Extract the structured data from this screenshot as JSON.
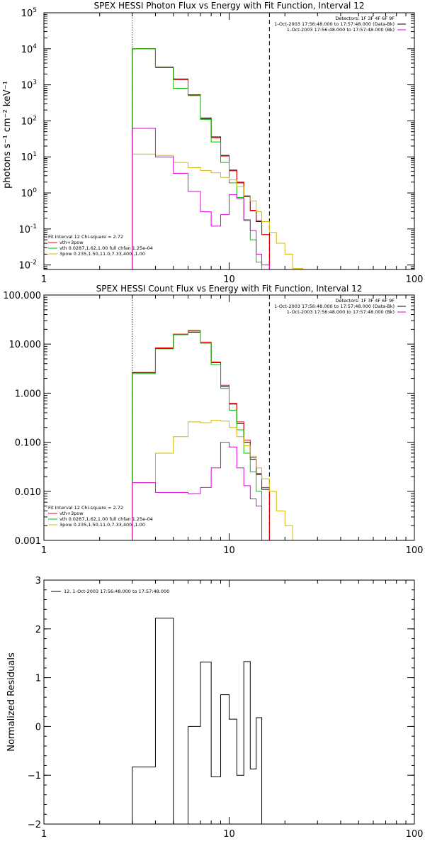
{
  "chart_data": [
    {
      "type": "line",
      "title": "SPEX HESSI Photon Flux vs Energy with Fit Function, Interval 12",
      "xlabel": "",
      "ylabel": "photons s⁻¹ cm⁻² keV⁻¹",
      "x_scale": "log",
      "y_scale": "log",
      "xlim": [
        1,
        100
      ],
      "ylim": [
        0.0075,
        100000
      ],
      "x_ticks": [
        {
          "v": 1,
          "label": "1"
        },
        {
          "v": 10,
          "label": "10"
        },
        {
          "v": 100,
          "label": "100"
        }
      ],
      "y_ticks": [
        {
          "v": 0.01,
          "b": "10",
          "e": "-2"
        },
        {
          "v": 0.1,
          "b": "10",
          "e": "-1"
        },
        {
          "v": 1,
          "b": "10",
          "e": "0"
        },
        {
          "v": 10,
          "b": "10",
          "e": "1"
        },
        {
          "v": 100,
          "b": "10",
          "e": "2"
        },
        {
          "v": 1000,
          "b": "10",
          "e": "3"
        },
        {
          "v": 10000,
          "b": "10",
          "e": "4"
        },
        {
          "v": 100000,
          "b": "10",
          "e": "5"
        }
      ],
      "vlines": [
        {
          "x": 3,
          "style": "dotted"
        },
        {
          "x": 16.5,
          "style": "dashed"
        }
      ],
      "info_lines": [
        "Detectors: 1F 3F 4F 6F 9F",
        "1-Oct-2003 17:56:48.000 to 17:57:48.000 (Data-Bk)",
        "1-Oct-2003 17:56:48.000 to 17:57:48.000 (Bk)"
      ],
      "info_colors": [
        "",
        "#000000",
        "#e000e0"
      ],
      "fit_text": [
        "Fit Interval 12    Chi-square = 2.72",
        "vth+3pow",
        "vth 0.0287,1.62,1.00  full chfan 1.25e-04",
        "3pow 0.235,1.50,11.0,7.33,400.,1.00"
      ],
      "fit_colors": [
        "#000000",
        "#ff0000",
        "#00c000",
        "#d4b800"
      ],
      "edges": [
        3,
        4,
        5,
        6,
        7,
        8,
        9,
        10,
        11,
        12,
        13,
        14,
        15,
        16.5,
        18,
        20,
        22,
        25
      ],
      "series": [
        {
          "color": "#000000",
          "values": [
            10000,
            3100,
            1450,
            530,
            120,
            36,
            11,
            4.3,
            1.9,
            0.8,
            0.32,
            0.16,
            0.07
          ]
        },
        {
          "color": "#ff0000",
          "values": [
            10000,
            3000,
            1400,
            520,
            115,
            34,
            10.5,
            4.1,
            2.0,
            0.78,
            0.33,
            0.17,
            0.07
          ]
        },
        {
          "color": "#00c000",
          "values": [
            10000,
            3000,
            800,
            500,
            110,
            26,
            7,
            1.9,
            0.75,
            0.17,
            0.05,
            0.012
          ]
        },
        {
          "color": "#d4b800",
          "values": [
            12,
            11,
            7,
            5,
            4.2,
            3.6,
            2.7,
            2.3,
            1.5,
            0.85,
            0.6,
            0.3,
            0.16,
            0.08,
            0.04,
            0.02,
            0.008
          ]
        },
        {
          "color": "#e000e0",
          "values": [
            62,
            10,
            3.5,
            1.1,
            0.3,
            0.12,
            0.25,
            0.9,
            0.7,
            0.18,
            0.09,
            0.02,
            0.01
          ]
        }
      ]
    },
    {
      "type": "line",
      "title": "SPEX HESSI Count Flux vs Energy with Fit Function, Interval 12",
      "xlabel": "",
      "ylabel": "",
      "x_scale": "log",
      "y_scale": "log",
      "xlim": [
        1,
        100
      ],
      "ylim": [
        0.001,
        100
      ],
      "x_ticks": [
        {
          "v": 1,
          "label": "1"
        },
        {
          "v": 10,
          "label": "10"
        },
        {
          "v": 100,
          "label": "100"
        }
      ],
      "y_ticks": [
        {
          "v": 0.001,
          "label": "0.001"
        },
        {
          "v": 0.01,
          "label": "0.010"
        },
        {
          "v": 0.1,
          "label": "0.100"
        },
        {
          "v": 1,
          "label": "1.000"
        },
        {
          "v": 10,
          "label": "10.000"
        },
        {
          "v": 100,
          "label": "100.000"
        }
      ],
      "vlines": [
        {
          "x": 3,
          "style": "dotted"
        },
        {
          "x": 16.5,
          "style": "dashed"
        }
      ],
      "info_lines": [
        "Detectors: 1F 3F 4F 6F 9F",
        "1-Oct-2003 17:56:48.000 to 17:57:48.000 (Data-Bk)",
        "1-Oct-2003 17:56:48.000 to 17:57:48.000 (Bk)"
      ],
      "info_colors": [
        "",
        "#000000",
        "#e000e0"
      ],
      "fit_text": [
        "Fit Interval 12    Chi-square = 2.72",
        "vth+3pow",
        "vth 0.0287,1.62,1.00  full chfan 1.25e-04",
        "3pow 0.235,1.50,11.0,7.33,400.,1.00"
      ],
      "fit_colors": [
        "#000000",
        "#ff0000",
        "#00c000",
        "#d4b800"
      ],
      "edges": [
        3,
        4,
        5,
        6,
        7,
        8,
        9,
        10,
        11,
        12,
        13,
        14,
        15,
        16.5,
        18,
        20,
        22,
        25
      ],
      "series": [
        {
          "color": "#000000",
          "values": [
            2.6,
            8.2,
            15.5,
            17.5,
            10.5,
            4.2,
            1.35,
            0.6,
            0.24,
            0.1,
            0.045,
            0.022,
            0.011
          ]
        },
        {
          "color": "#ff0000",
          "values": [
            2.65,
            8.4,
            16,
            18.5,
            11,
            4.3,
            1.45,
            0.62,
            0.26,
            0.11,
            0.048,
            0.023,
            0.012
          ]
        },
        {
          "color": "#00c000",
          "values": [
            2.5,
            8,
            15.5,
            19,
            10.5,
            3.8,
            1.25,
            0.45,
            0.18,
            0.06,
            0.025,
            0.01,
            0.001
          ]
        },
        {
          "color": "#d4b800",
          "values": [
            0.015,
            0.06,
            0.13,
            0.26,
            0.25,
            0.28,
            0.27,
            0.2,
            0.13,
            0.085,
            0.052,
            0.03,
            0.018,
            0.01,
            0.004,
            0.002,
            0.001
          ]
        },
        {
          "color": "#e000e0",
          "values": [
            0.015,
            0.0095,
            0.0095,
            0.009,
            0.012,
            0.03,
            0.1,
            0.08,
            0.03,
            0.013,
            0.007,
            0.005,
            0.001
          ]
        }
      ]
    },
    {
      "type": "line",
      "title": "",
      "xlabel": "",
      "ylabel": "Normalized Residuals",
      "x_scale": "log",
      "y_scale": "linear",
      "xlim": [
        1,
        100
      ],
      "ylim": [
        -2,
        3
      ],
      "x_ticks": [
        {
          "v": 1,
          "label": "1"
        },
        {
          "v": 10,
          "label": "10"
        },
        {
          "v": 100,
          "label": "100"
        }
      ],
      "y_ticks": [
        {
          "v": -2,
          "label": "−2"
        },
        {
          "v": -1,
          "label": "−1"
        },
        {
          "v": 0,
          "label": "0"
        },
        {
          "v": 1,
          "label": "1"
        },
        {
          "v": 2,
          "label": "2"
        },
        {
          "v": 3,
          "label": "3"
        }
      ],
      "vlines": [],
      "legend": "12.  1-Oct-2003 17:56:48.000 to 17:57:48.000",
      "edges": [
        3,
        4,
        5,
        6,
        7,
        8,
        9,
        10,
        11,
        12,
        13,
        14,
        15,
        16.5
      ],
      "series": [
        {
          "color": "#000000",
          "values": [
            -0.83,
            2.22,
            -2.05,
            0.0,
            1.32,
            -1.03,
            0.65,
            0.15,
            -1.0,
            1.33,
            -0.87,
            0.18
          ]
        }
      ]
    }
  ]
}
